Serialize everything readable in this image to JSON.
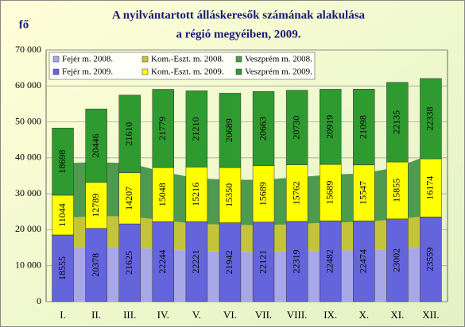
{
  "chart_data": {
    "type": "bar",
    "title": "A nyilvántartott álláskeresők számának alakulása",
    "subtitle": "a régió megyéiben, 2009.",
    "y_label": "fő",
    "categories": [
      "I.",
      "II.",
      "III.",
      "IV.",
      "V.",
      "VI.",
      "VII.",
      "VIII.",
      "IX.",
      "X.",
      "XI.",
      "XII."
    ],
    "series": [
      {
        "name": "Fejér m. 2008.",
        "type": "area",
        "color": "#a8a8e8",
        "values": [
          15000,
          15300,
          15100,
          14600,
          14000,
          13900,
          13800,
          14000,
          14200,
          14300,
          14700,
          15200
        ]
      },
      {
        "name": "Kom.-Eszt. m. 2008.",
        "type": "area",
        "color": "#c4c43a",
        "values": [
          8300,
          8500,
          8600,
          8000,
          7600,
          7500,
          7400,
          7600,
          7800,
          7900,
          8200,
          8800
        ]
      },
      {
        "name": "Veszprém m. 2008.",
        "type": "area",
        "color": "#4e9a4e",
        "values": [
          15200,
          15000,
          14800,
          13500,
          12700,
          12500,
          12700,
          13000,
          13300,
          13500,
          14500,
          17000
        ]
      },
      {
        "name": "Fejér m. 2009.",
        "type": "bar",
        "color": "#6464dc",
        "values": [
          18555,
          20378,
          21625,
          22244,
          22221,
          21942,
          22121,
          22319,
          22482,
          22474,
          23002,
          23559
        ]
      },
      {
        "name": "Kom.-Eszt. m. 2009.",
        "type": "bar",
        "color": "#ffff00",
        "values": [
          11044,
          12789,
          14207,
          15048,
          15216,
          15350,
          15689,
          15762,
          15689,
          15547,
          15855,
          16174
        ]
      },
      {
        "name": "Veszprém m. 2009.",
        "type": "bar",
        "color": "#2f9a2f",
        "values": [
          18698,
          20446,
          21610,
          21779,
          21210,
          20689,
          20663,
          20730,
          20919,
          21098,
          22135,
          22338
        ]
      }
    ],
    "ylim": [
      0,
      70000
    ],
    "yticks": [
      0,
      {
        "value": 10000,
        "label": "10 000"
      },
      {
        "value": 20000,
        "label": "20 000"
      },
      {
        "value": 30000,
        "label": "30 000"
      },
      {
        "value": 40000,
        "label": "40 000"
      },
      {
        "value": 50000,
        "label": "50 000"
      },
      {
        "value": 60000,
        "label": "60 000"
      },
      {
        "value": 70000,
        "label": "70 000"
      }
    ],
    "grid": true,
    "legend": "top-left"
  }
}
